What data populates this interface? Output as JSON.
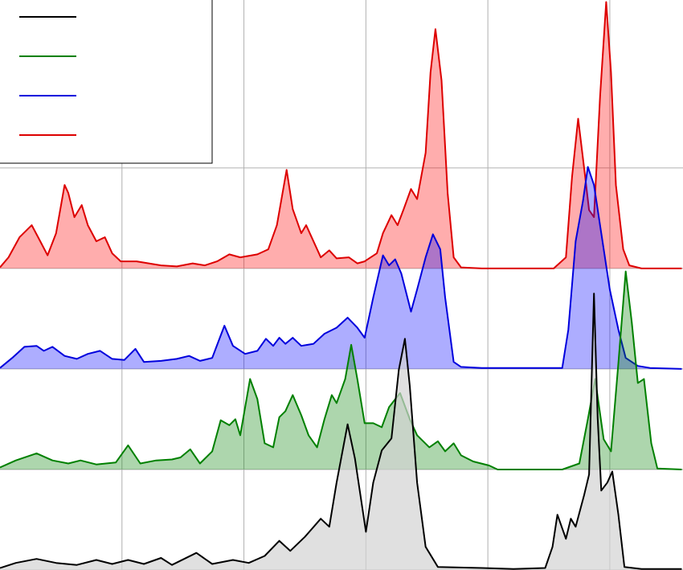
{
  "chart_data": {
    "type": "ridgeline",
    "grid": true,
    "legend": "upper left",
    "xlim": [
      0,
      560
    ],
    "xticks": [
      100,
      200,
      300,
      400,
      500
    ],
    "ylim": [
      0,
      567
    ],
    "yticks": [
      0,
      100,
      200,
      300,
      400
    ],
    "series": [
      {
        "color": "#000000",
        "fill": "#d3d3d3",
        "baseline": 0,
        "x": [
          0,
          13,
          30,
          46,
          63,
          79,
          92,
          105,
          118,
          132,
          141,
          161,
          174,
          191,
          204,
          217,
          229,
          238,
          250,
          263,
          270,
          276,
          285,
          291,
          300,
          306,
          313,
          321,
          327,
          332,
          336,
          342,
          349,
          359,
          395,
          421,
          447,
          453,
          457,
          464,
          468,
          472,
          479,
          483,
          487,
          490,
          493,
          498,
          502,
          507,
          512,
          526,
          559
        ],
        "values": [
          2,
          7,
          11,
          7,
          5,
          10,
          6,
          10,
          6,
          12,
          5,
          17,
          6,
          10,
          7,
          14,
          29,
          19,
          33,
          51,
          43,
          87,
          145,
          111,
          38,
          87,
          119,
          131,
          199,
          230,
          183,
          87,
          23,
          3,
          2,
          1,
          2,
          23,
          55,
          31,
          51,
          43,
          75,
          95,
          275,
          151,
          79,
          87,
          98,
          55,
          3,
          1,
          1
        ]
      },
      {
        "color": "#008000",
        "fill": "#008000",
        "baseline": 100,
        "x": [
          0,
          13,
          30,
          43,
          56,
          66,
          79,
          95,
          105,
          115,
          128,
          141,
          148,
          156,
          164,
          174,
          181,
          188,
          193,
          197,
          205,
          211,
          217,
          224,
          229,
          234,
          240,
          247,
          253,
          260,
          266,
          272,
          276,
          283,
          288,
          293,
          299,
          306,
          313,
          319,
          328,
          336,
          342,
          352,
          359,
          365,
          372,
          378,
          388,
          401,
          408,
          461,
          475,
          482,
          488,
          495,
          501,
          507,
          513,
          518,
          523,
          528,
          534,
          539,
          559
        ],
        "values": [
          2,
          9,
          16,
          9,
          6,
          9,
          5,
          7,
          24,
          6,
          9,
          10,
          12,
          20,
          6,
          18,
          49,
          44,
          50,
          34,
          90,
          70,
          26,
          22,
          52,
          58,
          74,
          54,
          34,
          22,
          50,
          74,
          66,
          90,
          124,
          90,
          46,
          46,
          42,
          62,
          76,
          50,
          34,
          22,
          28,
          18,
          26,
          14,
          8,
          4,
          0,
          0,
          6,
          50,
          90,
          30,
          18,
          106,
          197,
          146,
          86,
          90,
          26,
          1,
          0
        ]
      },
      {
        "color": "#0000dd",
        "fill": "#0000ff",
        "baseline": 200,
        "x": [
          0,
          10,
          20,
          30,
          36,
          43,
          53,
          63,
          72,
          82,
          92,
          102,
          111,
          118,
          132,
          145,
          155,
          164,
          174,
          179,
          184,
          191,
          201,
          211,
          218,
          224,
          229,
          234,
          240,
          247,
          257,
          266,
          276,
          285,
          293,
          299,
          306,
          314,
          319,
          324,
          329,
          337,
          342,
          349,
          355,
          361,
          365,
          372,
          378,
          395,
          461,
          466,
          472,
          478,
          482,
          487,
          493,
          500,
          507,
          513,
          523,
          533,
          559
        ],
        "values": [
          1,
          11,
          22,
          23,
          18,
          22,
          13,
          10,
          15,
          18,
          10,
          9,
          20,
          7,
          8,
          10,
          13,
          8,
          11,
          27,
          43,
          23,
          15,
          18,
          30,
          23,
          31,
          25,
          31,
          23,
          25,
          35,
          41,
          51,
          41,
          31,
          71,
          113,
          103,
          109,
          95,
          57,
          79,
          111,
          134,
          119,
          71,
          7,
          2,
          1,
          1,
          39,
          127,
          167,
          201,
          183,
          135,
          79,
          39,
          11,
          3,
          1,
          0
        ]
      },
      {
        "color": "#dd0000",
        "fill": "#ff0000",
        "baseline": 300,
        "x": [
          0,
          7,
          16,
          26,
          33,
          39,
          46,
          53,
          56,
          61,
          67,
          72,
          79,
          86,
          92,
          99,
          112,
          122,
          132,
          145,
          158,
          168,
          178,
          188,
          197,
          211,
          220,
          227,
          235,
          240,
          247,
          251,
          257,
          263,
          270,
          276,
          286,
          293,
          299,
          309,
          314,
          321,
          326,
          331,
          337,
          342,
          349,
          353,
          357,
          362,
          367,
          372,
          378,
          395,
          454,
          464,
          469,
          474,
          479,
          483,
          487,
          492,
          497,
          501,
          505,
          511,
          516,
          526,
          559
        ],
        "values": [
          1,
          11,
          31,
          43,
          27,
          13,
          35,
          83,
          75,
          51,
          63,
          43,
          27,
          31,
          15,
          7,
          7,
          5,
          3,
          2,
          5,
          3,
          7,
          14,
          11,
          14,
          19,
          43,
          98,
          59,
          35,
          43,
          27,
          11,
          18,
          10,
          11,
          5,
          7,
          15,
          35,
          53,
          43,
          59,
          79,
          69,
          115,
          195,
          238,
          187,
          75,
          11,
          1,
          0,
          0,
          11,
          91,
          149,
          99,
          58,
          51,
          171,
          265,
          195,
          83,
          19,
          3,
          0,
          0
        ]
      }
    ]
  }
}
